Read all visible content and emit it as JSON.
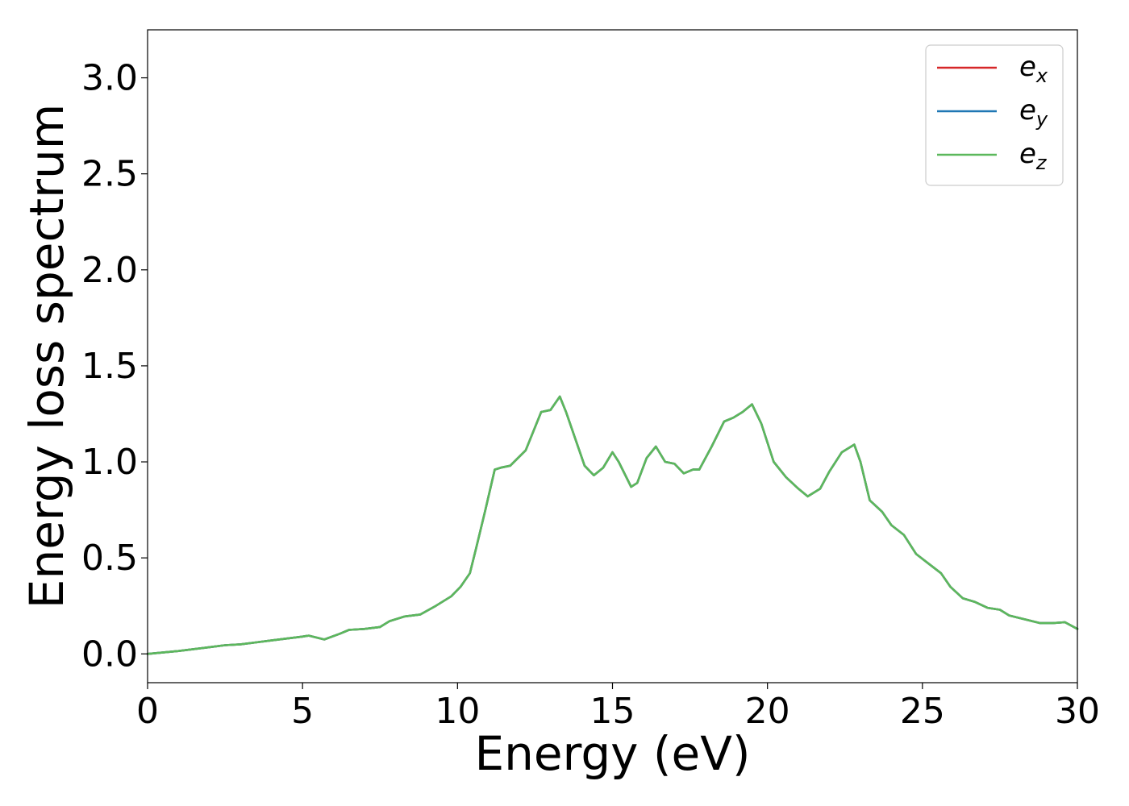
{
  "chart_data": {
    "type": "line",
    "xlabel": "Energy (eV)",
    "ylabel": "Energy loss spectrum",
    "xlim": [
      0,
      30
    ],
    "ylim": [
      -0.15,
      3.25
    ],
    "xticks": [
      0,
      5,
      10,
      15,
      20,
      25,
      30
    ],
    "xtick_labels": [
      "0",
      "5",
      "10",
      "15",
      "20",
      "25",
      "30"
    ],
    "yticks": [
      0.0,
      0.5,
      1.0,
      1.5,
      2.0,
      2.5,
      3.0
    ],
    "ytick_labels": [
      "0.0",
      "0.5",
      "1.0",
      "1.5",
      "2.0",
      "2.5",
      "3.0"
    ],
    "grid": false,
    "legend_position": "top-right",
    "x": [
      0,
      1,
      2,
      2.5,
      3,
      3.5,
      4,
      4.5,
      5,
      5.2,
      5.7,
      6.2,
      6.5,
      7,
      7.5,
      7.8,
      8.3,
      8.8,
      9.3,
      9.8,
      10.1,
      10.4,
      10.6,
      10.9,
      11.2,
      11.4,
      11.7,
      12.2,
      12.7,
      13,
      13.3,
      13.5,
      13.8,
      14.1,
      14.4,
      14.7,
      15,
      15.2,
      15.6,
      15.8,
      16.1,
      16.4,
      16.7,
      17,
      17.3,
      17.6,
      17.8,
      18.2,
      18.6,
      18.9,
      19.2,
      19.5,
      19.8,
      20.2,
      20.6,
      21,
      21.3,
      21.7,
      22,
      22.4,
      22.8,
      23,
      23.3,
      23.7,
      24,
      24.4,
      24.8,
      25.2,
      25.6,
      25.9,
      26.3,
      26.7,
      27.1,
      27.5,
      27.8,
      28.3,
      28.8,
      29.2,
      29.6,
      30
    ],
    "series": [
      {
        "name": "e_x",
        "color": "#d62728",
        "values": [
          0.0,
          0.015,
          0.035,
          0.045,
          0.05,
          0.06,
          0.07,
          0.08,
          0.09,
          0.095,
          0.075,
          0.105,
          0.125,
          0.13,
          0.14,
          0.17,
          0.195,
          0.205,
          0.25,
          0.3,
          0.35,
          0.42,
          0.55,
          0.75,
          0.96,
          0.97,
          0.98,
          1.06,
          1.26,
          1.27,
          1.34,
          1.26,
          1.12,
          0.98,
          0.93,
          0.97,
          1.05,
          1.0,
          0.87,
          0.89,
          1.02,
          1.08,
          1.0,
          0.99,
          0.94,
          0.96,
          0.96,
          1.08,
          1.21,
          1.23,
          1.26,
          1.3,
          1.2,
          1.0,
          0.92,
          0.86,
          0.82,
          0.86,
          0.95,
          1.05,
          1.09,
          1.0,
          0.8,
          0.74,
          0.67,
          0.62,
          0.52,
          0.47,
          0.42,
          0.35,
          0.29,
          0.27,
          0.24,
          0.23,
          0.2,
          0.18,
          0.16,
          0.16,
          0.165,
          0.13
        ]
      },
      {
        "name": "e_y",
        "color": "#1f77b4",
        "values": [
          0.0,
          0.015,
          0.035,
          0.045,
          0.05,
          0.06,
          0.07,
          0.08,
          0.09,
          0.095,
          0.075,
          0.105,
          0.125,
          0.13,
          0.14,
          0.17,
          0.195,
          0.205,
          0.25,
          0.3,
          0.35,
          0.42,
          0.55,
          0.75,
          0.96,
          0.97,
          0.98,
          1.06,
          1.26,
          1.27,
          1.34,
          1.26,
          1.12,
          0.98,
          0.93,
          0.97,
          1.05,
          1.0,
          0.87,
          0.89,
          1.02,
          1.08,
          1.0,
          0.99,
          0.94,
          0.96,
          0.96,
          1.08,
          1.21,
          1.23,
          1.26,
          1.3,
          1.2,
          1.0,
          0.92,
          0.86,
          0.82,
          0.86,
          0.95,
          1.05,
          1.09,
          1.0,
          0.8,
          0.74,
          0.67,
          0.62,
          0.52,
          0.47,
          0.42,
          0.35,
          0.29,
          0.27,
          0.24,
          0.23,
          0.2,
          0.18,
          0.16,
          0.16,
          0.165,
          0.13
        ]
      },
      {
        "name": "e_z",
        "color": "#5cb85c",
        "values": [
          0.0,
          0.015,
          0.035,
          0.045,
          0.05,
          0.06,
          0.07,
          0.08,
          0.09,
          0.095,
          0.075,
          0.105,
          0.125,
          0.13,
          0.14,
          0.17,
          0.195,
          0.205,
          0.25,
          0.3,
          0.35,
          0.42,
          0.55,
          0.75,
          0.96,
          0.97,
          0.98,
          1.06,
          1.26,
          1.27,
          1.34,
          1.26,
          1.12,
          0.98,
          0.93,
          0.97,
          1.05,
          1.0,
          0.87,
          0.89,
          1.02,
          1.08,
          1.0,
          0.99,
          0.94,
          0.96,
          0.96,
          1.08,
          1.21,
          1.23,
          1.26,
          1.3,
          1.2,
          1.0,
          0.92,
          0.86,
          0.82,
          0.86,
          0.95,
          1.05,
          1.09,
          1.0,
          0.8,
          0.74,
          0.67,
          0.62,
          0.52,
          0.47,
          0.42,
          0.35,
          0.29,
          0.27,
          0.24,
          0.23,
          0.2,
          0.18,
          0.16,
          0.16,
          0.165,
          0.13
        ]
      }
    ],
    "legend": [
      {
        "base": "e",
        "sub": "x"
      },
      {
        "base": "e",
        "sub": "y"
      },
      {
        "base": "e",
        "sub": "z"
      }
    ]
  }
}
